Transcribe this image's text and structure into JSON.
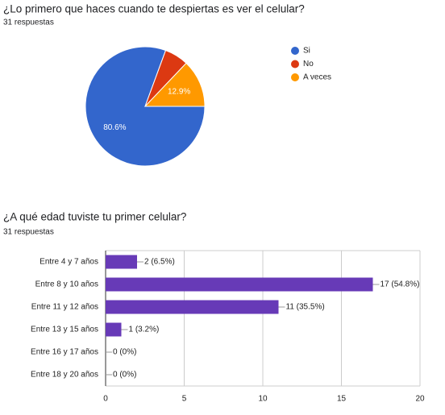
{
  "chart_data": [
    {
      "type": "pie",
      "title": "¿Lo primero que haces cuando te despiertas es ver el celular?",
      "subtitle": "31 respuestas",
      "categories": [
        "Si",
        "No",
        "A veces"
      ],
      "values": [
        80.6,
        6.5,
        12.9
      ],
      "value_labels": [
        "80.6%",
        null,
        "12.9%"
      ],
      "colors": [
        "#3366cc",
        "#dc3912",
        "#ff9900"
      ],
      "legend": "right"
    },
    {
      "type": "hbar",
      "title": "¿A qué edad tuviste tu primer celular?",
      "subtitle": "31 respuestas",
      "categories": [
        "Entre 4 y 7 años",
        "Entre 8 y 10 años",
        "Entre 11 y 12 años",
        "Entre 13 y 15 años",
        "Entre 16 y 17 años",
        "Entre 18 y 20 años"
      ],
      "values": [
        2,
        17,
        11,
        1,
        0,
        0
      ],
      "value_labels": [
        "2 (6.5%)",
        "17 (54.8%)",
        "11 (35.5%)",
        "1 (3.2%)",
        "0 (0%)",
        "0 (0%)"
      ],
      "color": "#673ab7",
      "xlim": [
        0,
        20
      ],
      "xticks": [
        0,
        5,
        10,
        15,
        20
      ],
      "grid": true
    }
  ]
}
